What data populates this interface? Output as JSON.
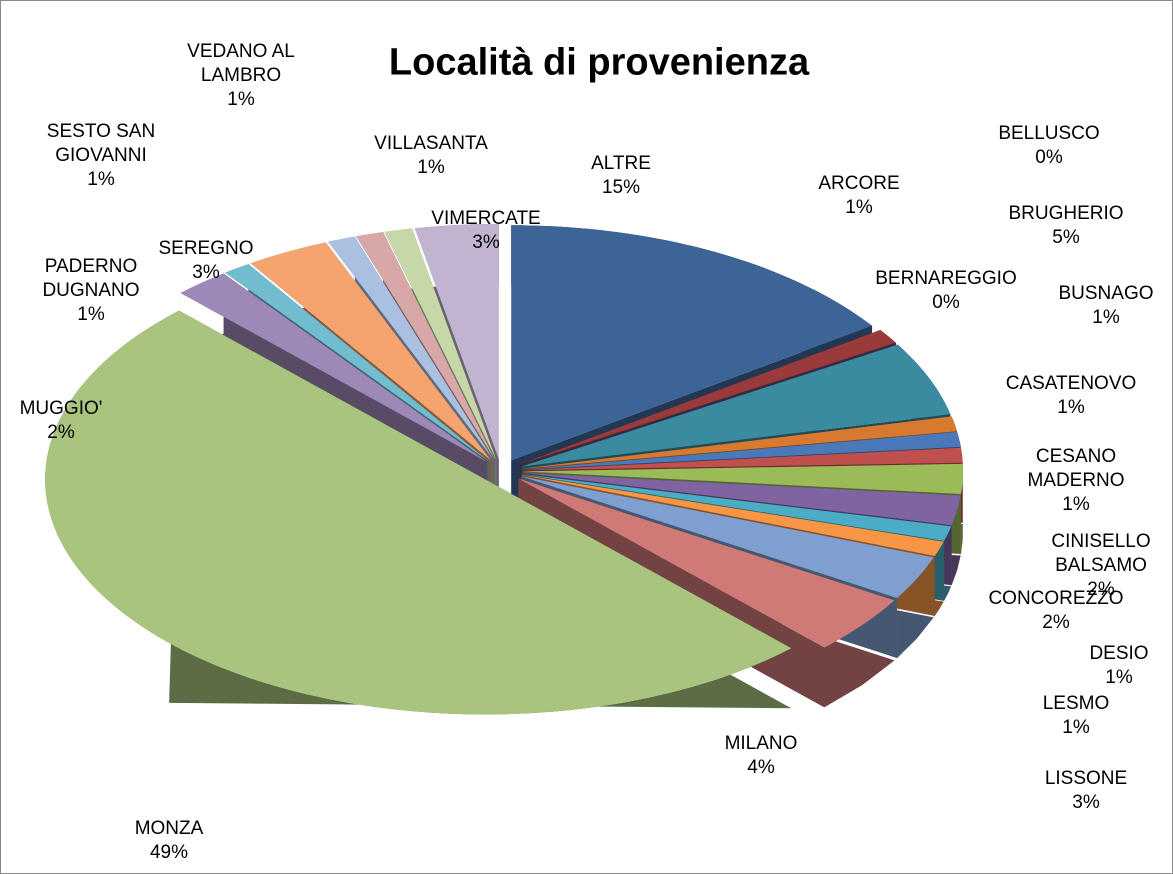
{
  "chart_data": {
    "type": "pie",
    "title": "Località di provenienza",
    "categories": [
      "ALTRE",
      "ARCORE",
      "BELLUSCO",
      "BERNAREGGIO",
      "BRUGHERIO",
      "BUSNAGO",
      "CASATENOVO",
      "CESANO MADERNO",
      "CINISELLO BALSAMO",
      "CONCOREZZO",
      "DESIO",
      "LESMO",
      "LISSONE",
      "MILANO",
      "MONZA",
      "MUGGIO'",
      "PADERNO DUGNANO",
      "SEREGNO",
      "SESTO SAN GIOVANNI",
      "VEDANO AL LAMBRO",
      "VILLASANTA",
      "VIMERCATE"
    ],
    "values": [
      15,
      1,
      0,
      0,
      5,
      1,
      1,
      1,
      2,
      2,
      1,
      1,
      3,
      4,
      49,
      2,
      1,
      3,
      1,
      1,
      1,
      3
    ],
    "value_labels": [
      "15%",
      "1%",
      "0%",
      "0%",
      "5%",
      "1%",
      "1%",
      "1%",
      "2%",
      "2%",
      "1%",
      "1%",
      "3%",
      "4%",
      "49%",
      "2%",
      "1%",
      "3%",
      "1%",
      "1%",
      "1%",
      "3%"
    ],
    "colors": [
      "#3c6496",
      "#9b3a3a",
      "#7a9a3c",
      "#5e4a80",
      "#3a8aa0",
      "#d77a30",
      "#4a78b8",
      "#c0504d",
      "#9bbb59",
      "#8064a2",
      "#4bacc6",
      "#f79646",
      "#7f9fd0",
      "#d07a78",
      "#a8c47e",
      "#9e88b8",
      "#72bcd0",
      "#f5a470",
      "#a9c0e0",
      "#d8a8a8",
      "#c6d8a8",
      "#c0b4d0"
    ]
  }
}
